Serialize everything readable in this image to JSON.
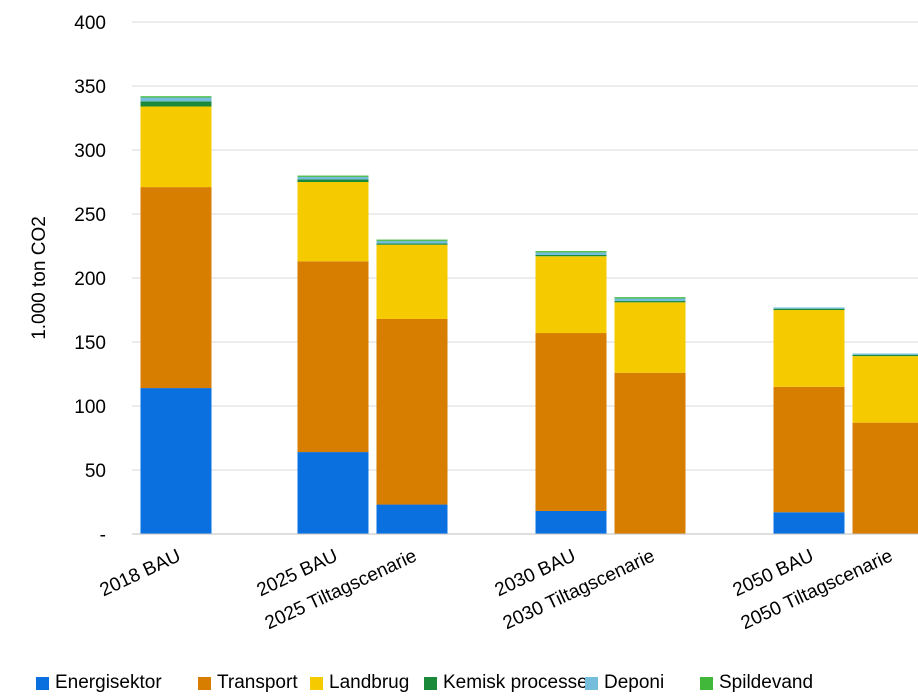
{
  "chart_data": {
    "type": "bar",
    "stacked": true,
    "title": "",
    "xlabel": "",
    "ylabel": "1.000 ton CO2",
    "ylim": [
      0,
      400
    ],
    "yticks": [
      0,
      50,
      100,
      150,
      200,
      250,
      300,
      350,
      400
    ],
    "ytick_labels": [
      "-",
      "50",
      "100",
      "150",
      "200",
      "250",
      "300",
      "350",
      "400"
    ],
    "grid": true,
    "legend_position": "bottom",
    "categories": [
      "2018 BAU",
      "2025 BAU",
      "2025 Tiltagscenarie",
      "2030 BAU",
      "2030 Tiltagscenarie",
      "2050 BAU",
      "2050 Tiltagscenarie"
    ],
    "series": [
      {
        "name": "Energisektor",
        "color": "#0A70E0",
        "values": [
          114,
          64,
          23,
          18,
          0,
          17,
          0
        ]
      },
      {
        "name": "Transport",
        "color": "#D77E00",
        "values": [
          157,
          149,
          145,
          139,
          126,
          98,
          87
        ]
      },
      {
        "name": "Landbrug",
        "color": "#F5CB00",
        "values": [
          63,
          62,
          58,
          60,
          55,
          60,
          52
        ]
      },
      {
        "name": "Kemisk processer",
        "color": "#1A8A3A",
        "values": [
          4,
          2,
          1,
          1,
          1,
          1,
          1
        ]
      },
      {
        "name": "Deponi",
        "color": "#74BEDC",
        "values": [
          3,
          2,
          2,
          2,
          2,
          1,
          1
        ]
      },
      {
        "name": "Spildevand",
        "color": "#42B83A",
        "values": [
          1,
          1,
          1,
          1,
          1,
          0,
          0
        ]
      }
    ]
  }
}
